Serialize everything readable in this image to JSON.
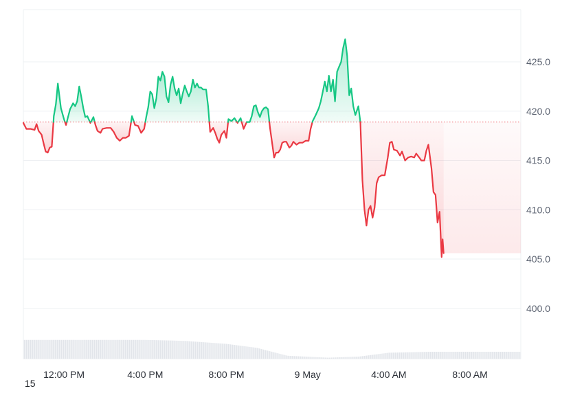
{
  "corner_text": "15",
  "colors": {
    "up": "#16c784",
    "down": "#ea3943",
    "up_fill": "#16c784",
    "down_fill": "#ea3943",
    "baseline": "#ea3943",
    "grid": "#eef0f3",
    "axis_text": "#5b6270",
    "volume": "#e7eaee"
  },
  "chart_data": {
    "type": "line",
    "title": "",
    "xlabel": "",
    "ylabel": "",
    "x_ticks": [
      "12:00 PM",
      "4:00 PM",
      "8:00 PM",
      "9 May",
      "4:00 AM",
      "8:00 AM"
    ],
    "x_tick_hours": [
      2,
      6,
      10,
      14,
      18,
      22
    ],
    "x_range_hours": [
      0,
      24.5
    ],
    "y_ticks": [
      "400.0",
      "405.0",
      "410.0",
      "415.0",
      "420.0",
      "425.0"
    ],
    "y_tick_values": [
      400,
      405,
      410,
      415,
      420,
      425
    ],
    "ylim": [
      394.9,
      430.3
    ],
    "baseline": 418.9,
    "grid": true,
    "axis_position": "right",
    "series": [
      {
        "points": [
          [
            0.0,
            418.8
          ],
          [
            0.15,
            418.2
          ],
          [
            0.35,
            418.2
          ],
          [
            0.55,
            418.1
          ],
          [
            0.65,
            418.7
          ],
          [
            0.75,
            418.0
          ],
          [
            0.9,
            417.6
          ],
          [
            1.0,
            416.7
          ],
          [
            1.1,
            415.9
          ],
          [
            1.2,
            415.8
          ],
          [
            1.3,
            416.3
          ],
          [
            1.4,
            416.4
          ],
          [
            1.5,
            419.5
          ],
          [
            1.6,
            420.7
          ],
          [
            1.7,
            422.8
          ],
          [
            1.85,
            420.3
          ],
          [
            2.0,
            419.2
          ],
          [
            2.1,
            418.6
          ],
          [
            2.2,
            419.4
          ],
          [
            2.3,
            420.2
          ],
          [
            2.45,
            420.8
          ],
          [
            2.55,
            420.5
          ],
          [
            2.65,
            421.0
          ],
          [
            2.75,
            422.5
          ],
          [
            2.85,
            421.5
          ],
          [
            2.95,
            420.3
          ],
          [
            3.05,
            419.4
          ],
          [
            3.15,
            419.5
          ],
          [
            3.3,
            418.8
          ],
          [
            3.45,
            419.4
          ],
          [
            3.55,
            418.6
          ],
          [
            3.65,
            418.0
          ],
          [
            3.8,
            417.8
          ],
          [
            3.9,
            418.2
          ],
          [
            4.1,
            418.3
          ],
          [
            4.3,
            418.3
          ],
          [
            4.45,
            417.9
          ],
          [
            4.6,
            417.3
          ],
          [
            4.75,
            417.0
          ],
          [
            4.9,
            417.3
          ],
          [
            5.05,
            417.3
          ],
          [
            5.2,
            417.5
          ],
          [
            5.35,
            419.5
          ],
          [
            5.5,
            418.6
          ],
          [
            5.65,
            418.5
          ],
          [
            5.8,
            417.8
          ],
          [
            5.95,
            418.2
          ],
          [
            6.05,
            419.4
          ],
          [
            6.15,
            420.4
          ],
          [
            6.25,
            422.0
          ],
          [
            6.35,
            421.7
          ],
          [
            6.45,
            420.3
          ],
          [
            6.55,
            421.3
          ],
          [
            6.65,
            423.5
          ],
          [
            6.75,
            423.1
          ],
          [
            6.85,
            424.0
          ],
          [
            6.95,
            423.5
          ],
          [
            7.05,
            421.5
          ],
          [
            7.15,
            420.9
          ],
          [
            7.25,
            422.7
          ],
          [
            7.35,
            423.5
          ],
          [
            7.45,
            422.3
          ],
          [
            7.55,
            421.6
          ],
          [
            7.65,
            422.3
          ],
          [
            7.75,
            420.8
          ],
          [
            7.85,
            421.8
          ],
          [
            7.95,
            422.6
          ],
          [
            8.05,
            422.0
          ],
          [
            8.15,
            421.5
          ],
          [
            8.25,
            422.0
          ],
          [
            8.35,
            423.2
          ],
          [
            8.45,
            422.4
          ],
          [
            8.55,
            422.8
          ],
          [
            8.65,
            422.4
          ],
          [
            8.75,
            422.4
          ],
          [
            8.85,
            422.2
          ],
          [
            9.0,
            422.2
          ],
          [
            9.1,
            420.5
          ],
          [
            9.2,
            417.9
          ],
          [
            9.35,
            418.3
          ],
          [
            9.45,
            417.8
          ],
          [
            9.55,
            417.2
          ],
          [
            9.65,
            416.8
          ],
          [
            9.75,
            417.6
          ],
          [
            9.9,
            418.0
          ],
          [
            10.0,
            417.3
          ],
          [
            10.1,
            419.2
          ],
          [
            10.25,
            419.0
          ],
          [
            10.4,
            419.3
          ],
          [
            10.55,
            418.8
          ],
          [
            10.7,
            419.3
          ],
          [
            10.85,
            418.2
          ],
          [
            11.0,
            418.9
          ],
          [
            11.15,
            418.9
          ],
          [
            11.25,
            419.5
          ],
          [
            11.35,
            420.5
          ],
          [
            11.45,
            420.6
          ],
          [
            11.55,
            419.9
          ],
          [
            11.65,
            419.4
          ],
          [
            11.75,
            420.0
          ],
          [
            11.85,
            420.3
          ],
          [
            11.95,
            420.4
          ],
          [
            12.05,
            420.2
          ],
          [
            12.15,
            418.3
          ],
          [
            12.25,
            416.8
          ],
          [
            12.35,
            415.3
          ],
          [
            12.45,
            415.8
          ],
          [
            12.55,
            415.8
          ],
          [
            12.65,
            416.1
          ],
          [
            12.75,
            416.8
          ],
          [
            12.85,
            416.9
          ],
          [
            12.95,
            416.9
          ],
          [
            13.1,
            416.3
          ],
          [
            13.2,
            416.5
          ],
          [
            13.3,
            416.9
          ],
          [
            13.45,
            416.6
          ],
          [
            13.6,
            416.8
          ],
          [
            13.75,
            416.8
          ],
          [
            13.9,
            417.0
          ],
          [
            14.05,
            417.0
          ],
          [
            14.15,
            418.2
          ],
          [
            14.25,
            419.0
          ],
          [
            14.4,
            419.6
          ],
          [
            14.55,
            420.3
          ],
          [
            14.65,
            421.0
          ],
          [
            14.75,
            422.0
          ],
          [
            14.85,
            423.0
          ],
          [
            14.95,
            422.0
          ],
          [
            15.05,
            423.6
          ],
          [
            15.15,
            422.0
          ],
          [
            15.25,
            423.2
          ],
          [
            15.35,
            421.0
          ],
          [
            15.45,
            424.0
          ],
          [
            15.55,
            424.5
          ],
          [
            15.65,
            425.0
          ],
          [
            15.75,
            426.4
          ],
          [
            15.85,
            427.3
          ],
          [
            15.95,
            425.6
          ],
          [
            16.05,
            421.6
          ],
          [
            16.15,
            422.3
          ],
          [
            16.25,
            420.5
          ],
          [
            16.35,
            419.6
          ],
          [
            16.5,
            420.5
          ],
          [
            16.6,
            418.9
          ],
          [
            16.7,
            413.0
          ],
          [
            16.8,
            410.0
          ],
          [
            16.9,
            408.4
          ],
          [
            17.0,
            410.0
          ],
          [
            17.1,
            410.4
          ],
          [
            17.2,
            409.2
          ],
          [
            17.3,
            410.2
          ],
          [
            17.4,
            412.7
          ],
          [
            17.5,
            413.3
          ],
          [
            17.65,
            413.5
          ],
          [
            17.8,
            413.5
          ],
          [
            17.95,
            415.3
          ],
          [
            18.05,
            416.8
          ],
          [
            18.15,
            416.9
          ],
          [
            18.25,
            416.1
          ],
          [
            18.4,
            416.0
          ],
          [
            18.55,
            415.5
          ],
          [
            18.65,
            415.9
          ],
          [
            18.8,
            415.0
          ],
          [
            18.95,
            415.3
          ],
          [
            19.1,
            415.4
          ],
          [
            19.25,
            415.3
          ],
          [
            19.35,
            415.7
          ],
          [
            19.5,
            415.3
          ],
          [
            19.6,
            415.0
          ],
          [
            19.75,
            415.0
          ],
          [
            19.85,
            416.0
          ],
          [
            19.95,
            416.6
          ],
          [
            20.1,
            414.2
          ],
          [
            20.2,
            411.8
          ],
          [
            20.3,
            411.5
          ],
          [
            20.4,
            408.7
          ],
          [
            20.5,
            409.8
          ],
          [
            20.6,
            405.2
          ],
          [
            20.65,
            407.0
          ],
          [
            20.7,
            405.6
          ]
        ]
      }
    ],
    "volume": {
      "points": [
        [
          0,
          396.8
        ],
        [
          2,
          396.8
        ],
        [
          4,
          396.8
        ],
        [
          6,
          396.8
        ],
        [
          8,
          396.7
        ],
        [
          10,
          396.4
        ],
        [
          11.5,
          396.0
        ],
        [
          13,
          395.2
        ],
        [
          15,
          395.0
        ],
        [
          16.5,
          395.1
        ],
        [
          18,
          395.5
        ],
        [
          20,
          395.6
        ],
        [
          20.7,
          395.6
        ]
      ]
    }
  }
}
